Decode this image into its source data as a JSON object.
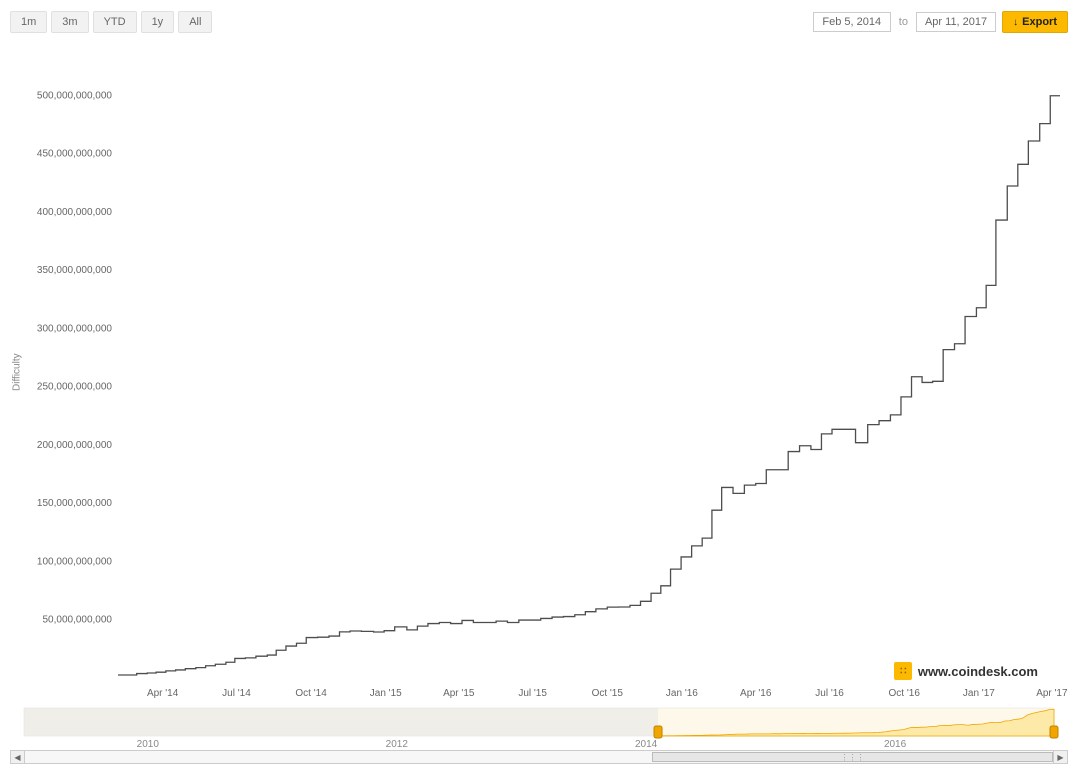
{
  "toolbar": {
    "ranges": [
      "1m",
      "3m",
      "YTD",
      "1y",
      "All"
    ],
    "date_from": "Feb 5, 2014",
    "date_to_label": "to",
    "date_to": "Apr 11, 2017",
    "export_label": "Export"
  },
  "brand": {
    "text": "www.coindesk.com"
  },
  "chart": {
    "type": "step-line",
    "yaxis_title": "Difficulty",
    "line_color": "#4d4d4d",
    "line_width": 1.3,
    "background_color": "#ffffff",
    "ylim": [
      0,
      520000000000
    ],
    "yticks": [
      {
        "v": 50000000000,
        "label": "50,000,000,000"
      },
      {
        "v": 100000000000,
        "label": "100,000,000,000"
      },
      {
        "v": 150000000000,
        "label": "150,000,000,000"
      },
      {
        "v": 200000000000,
        "label": "200,000,000,000"
      },
      {
        "v": 250000000000,
        "label": "250,000,000,000"
      },
      {
        "v": 300000000000,
        "label": "300,000,000,000"
      },
      {
        "v": 350000000000,
        "label": "350,000,000,000"
      },
      {
        "v": 400000000000,
        "label": "400,000,000,000"
      },
      {
        "v": 450000000000,
        "label": "450,000,000,000"
      },
      {
        "v": 500000000000,
        "label": "500,000,000,000"
      }
    ],
    "xlim": [
      "2014-02-05",
      "2017-04-11"
    ],
    "xticks": [
      {
        "date": "2014-04-01",
        "label": "Apr '14"
      },
      {
        "date": "2014-07-01",
        "label": "Jul '14"
      },
      {
        "date": "2014-10-01",
        "label": "Oct '14"
      },
      {
        "date": "2015-01-01",
        "label": "Jan '15"
      },
      {
        "date": "2015-04-01",
        "label": "Apr '15"
      },
      {
        "date": "2015-07-01",
        "label": "Jul '15"
      },
      {
        "date": "2015-10-01",
        "label": "Oct '15"
      },
      {
        "date": "2016-01-01",
        "label": "Jan '16"
      },
      {
        "date": "2016-04-01",
        "label": "Apr '16"
      },
      {
        "date": "2016-07-01",
        "label": "Jul '16"
      },
      {
        "date": "2016-10-01",
        "label": "Oct '16"
      },
      {
        "date": "2017-01-01",
        "label": "Jan '17"
      },
      {
        "date": "2017-04-01",
        "label": "Apr '17"
      }
    ],
    "points": [
      {
        "date": "2014-02-05",
        "v": 2600000000
      },
      {
        "date": "2014-02-28",
        "v": 3800000000
      },
      {
        "date": "2014-03-13",
        "v": 4300000000
      },
      {
        "date": "2014-03-24",
        "v": 5000000000
      },
      {
        "date": "2014-04-05",
        "v": 6100000000
      },
      {
        "date": "2014-04-17",
        "v": 6900000000
      },
      {
        "date": "2014-04-29",
        "v": 8000000000
      },
      {
        "date": "2014-05-12",
        "v": 8900000000
      },
      {
        "date": "2014-05-24",
        "v": 10500000000
      },
      {
        "date": "2014-06-05",
        "v": 11800000000
      },
      {
        "date": "2014-06-18",
        "v": 13500000000
      },
      {
        "date": "2014-06-29",
        "v": 16800000000
      },
      {
        "date": "2014-07-12",
        "v": 17300000000
      },
      {
        "date": "2014-07-25",
        "v": 18700000000
      },
      {
        "date": "2014-08-08",
        "v": 19700000000
      },
      {
        "date": "2014-08-19",
        "v": 23800000000
      },
      {
        "date": "2014-08-31",
        "v": 27400000000
      },
      {
        "date": "2014-09-13",
        "v": 29800000000
      },
      {
        "date": "2014-09-25",
        "v": 34700000000
      },
      {
        "date": "2014-10-09",
        "v": 35000000000
      },
      {
        "date": "2014-10-23",
        "v": 36000000000
      },
      {
        "date": "2014-11-05",
        "v": 39600000000
      },
      {
        "date": "2014-11-18",
        "v": 40300000000
      },
      {
        "date": "2014-12-02",
        "v": 40000000000
      },
      {
        "date": "2014-12-17",
        "v": 39500000000
      },
      {
        "date": "2014-12-30",
        "v": 40600000000
      },
      {
        "date": "2015-01-12",
        "v": 43900000000
      },
      {
        "date": "2015-01-27",
        "v": 41300000000
      },
      {
        "date": "2015-02-09",
        "v": 44500000000
      },
      {
        "date": "2015-02-22",
        "v": 46700000000
      },
      {
        "date": "2015-03-08",
        "v": 47600000000
      },
      {
        "date": "2015-03-22",
        "v": 46700000000
      },
      {
        "date": "2015-04-05",
        "v": 49400000000
      },
      {
        "date": "2015-04-19",
        "v": 47600000000
      },
      {
        "date": "2015-05-03",
        "v": 47600000000
      },
      {
        "date": "2015-05-17",
        "v": 48800000000
      },
      {
        "date": "2015-05-31",
        "v": 47600000000
      },
      {
        "date": "2015-06-14",
        "v": 49700000000
      },
      {
        "date": "2015-06-28",
        "v": 49700000000
      },
      {
        "date": "2015-07-11",
        "v": 51100000000
      },
      {
        "date": "2015-07-25",
        "v": 52300000000
      },
      {
        "date": "2015-08-08",
        "v": 52700000000
      },
      {
        "date": "2015-08-22",
        "v": 54300000000
      },
      {
        "date": "2015-09-04",
        "v": 56900000000
      },
      {
        "date": "2015-09-17",
        "v": 59300000000
      },
      {
        "date": "2015-10-01",
        "v": 60800000000
      },
      {
        "date": "2015-10-15",
        "v": 60900000000
      },
      {
        "date": "2015-10-29",
        "v": 62300000000
      },
      {
        "date": "2015-11-11",
        "v": 65800000000
      },
      {
        "date": "2015-11-24",
        "v": 72700000000
      },
      {
        "date": "2015-12-06",
        "v": 79100000000
      },
      {
        "date": "2015-12-18",
        "v": 93400000000
      },
      {
        "date": "2015-12-31",
        "v": 103900000000
      },
      {
        "date": "2016-01-13",
        "v": 113400000000
      },
      {
        "date": "2016-01-26",
        "v": 120000000000
      },
      {
        "date": "2016-02-07",
        "v": 144000000000
      },
      {
        "date": "2016-02-19",
        "v": 163500000000
      },
      {
        "date": "2016-03-04",
        "v": 158400000000
      },
      {
        "date": "2016-03-18",
        "v": 165500000000
      },
      {
        "date": "2016-04-01",
        "v": 166900000000
      },
      {
        "date": "2016-04-14",
        "v": 178700000000
      },
      {
        "date": "2016-04-28",
        "v": 178700000000
      },
      {
        "date": "2016-05-11",
        "v": 194300000000
      },
      {
        "date": "2016-05-25",
        "v": 199300000000
      },
      {
        "date": "2016-06-08",
        "v": 196100000000
      },
      {
        "date": "2016-06-21",
        "v": 209500000000
      },
      {
        "date": "2016-07-04",
        "v": 213400000000
      },
      {
        "date": "2016-07-18",
        "v": 213400000000
      },
      {
        "date": "2016-08-02",
        "v": 201900000000
      },
      {
        "date": "2016-08-17",
        "v": 217400000000
      },
      {
        "date": "2016-08-31",
        "v": 220800000000
      },
      {
        "date": "2016-09-14",
        "v": 225800000000
      },
      {
        "date": "2016-09-27",
        "v": 241200000000
      },
      {
        "date": "2016-10-10",
        "v": 258500000000
      },
      {
        "date": "2016-10-23",
        "v": 253600000000
      },
      {
        "date": "2016-11-05",
        "v": 254600000000
      },
      {
        "date": "2016-11-18",
        "v": 281800000000
      },
      {
        "date": "2016-12-02",
        "v": 286800000000
      },
      {
        "date": "2016-12-15",
        "v": 310200000000
      },
      {
        "date": "2016-12-29",
        "v": 317700000000
      },
      {
        "date": "2017-01-10",
        "v": 336900000000
      },
      {
        "date": "2017-01-22",
        "v": 392960000000
      },
      {
        "date": "2017-02-05",
        "v": 422200000000
      },
      {
        "date": "2017-02-18",
        "v": 440800000000
      },
      {
        "date": "2017-03-03",
        "v": 460800000000
      },
      {
        "date": "2017-03-17",
        "v": 475700000000
      },
      {
        "date": "2017-03-30",
        "v": 499600000000
      },
      {
        "date": "2017-04-11",
        "v": 499600000000
      }
    ]
  },
  "navigator": {
    "xlim": [
      "2009-01-03",
      "2017-04-11"
    ],
    "xticks": [
      "2010",
      "2012",
      "2014",
      "2016"
    ],
    "selection": [
      "2014-02-05",
      "2017-04-11"
    ],
    "area_color": "#fde9a8",
    "line_color": "#f0a500",
    "handle_color": "#f0a500",
    "mask_color": "rgba(230,230,230,0.55)"
  },
  "scrollbar": {
    "thumb_left_pct": 61,
    "thumb_width_pct": 39
  }
}
